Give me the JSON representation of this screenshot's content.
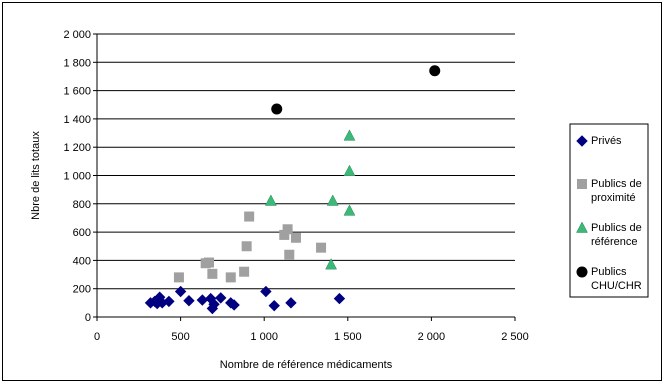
{
  "chart_data": {
    "type": "scatter",
    "title": "",
    "xlabel": "Nombre de référence médicaments",
    "ylabel": "Nbre de lits totaux",
    "xlim": [
      0,
      2500
    ],
    "ylim": [
      0,
      2000
    ],
    "x_ticks": [
      {
        "value": 0,
        "label": "0"
      },
      {
        "value": 500,
        "label": "500"
      },
      {
        "value": 1000,
        "label": "1 000"
      },
      {
        "value": 1500,
        "label": "1 500"
      },
      {
        "value": 2000,
        "label": "2 000"
      },
      {
        "value": 2500,
        "label": "2 500"
      }
    ],
    "y_ticks": [
      {
        "value": 0,
        "label": "0"
      },
      {
        "value": 200,
        "label": "200"
      },
      {
        "value": 400,
        "label": "400"
      },
      {
        "value": 600,
        "label": "600"
      },
      {
        "value": 800,
        "label": "800"
      },
      {
        "value": 1000,
        "label": "1 000"
      },
      {
        "value": 1200,
        "label": "1 200"
      },
      {
        "value": 1400,
        "label": "1 400"
      },
      {
        "value": 1600,
        "label": "1 600"
      },
      {
        "value": 1800,
        "label": "1 800"
      },
      {
        "value": 2000,
        "label": "2 000"
      }
    ],
    "grid": "horizontal",
    "legend_position": "right",
    "series": [
      {
        "name": "Privés",
        "marker": "diamond",
        "color": "#000080",
        "points": [
          {
            "x": 320,
            "y": 100
          },
          {
            "x": 345,
            "y": 110
          },
          {
            "x": 360,
            "y": 95
          },
          {
            "x": 375,
            "y": 140
          },
          {
            "x": 390,
            "y": 100
          },
          {
            "x": 430,
            "y": 110
          },
          {
            "x": 500,
            "y": 180
          },
          {
            "x": 550,
            "y": 115
          },
          {
            "x": 630,
            "y": 120
          },
          {
            "x": 680,
            "y": 130
          },
          {
            "x": 690,
            "y": 60
          },
          {
            "x": 700,
            "y": 90
          },
          {
            "x": 740,
            "y": 135
          },
          {
            "x": 800,
            "y": 100
          },
          {
            "x": 820,
            "y": 85
          },
          {
            "x": 1010,
            "y": 180
          },
          {
            "x": 1060,
            "y": 80
          },
          {
            "x": 1160,
            "y": 100
          },
          {
            "x": 1450,
            "y": 130
          }
        ]
      },
      {
        "name": "Publics de proximité",
        "marker": "square",
        "color": "#a0a0a0",
        "points": [
          {
            "x": 490,
            "y": 280
          },
          {
            "x": 650,
            "y": 380
          },
          {
            "x": 670,
            "y": 385
          },
          {
            "x": 690,
            "y": 305
          },
          {
            "x": 800,
            "y": 280
          },
          {
            "x": 880,
            "y": 320
          },
          {
            "x": 895,
            "y": 500
          },
          {
            "x": 910,
            "y": 710
          },
          {
            "x": 1120,
            "y": 580
          },
          {
            "x": 1140,
            "y": 620
          },
          {
            "x": 1150,
            "y": 440
          },
          {
            "x": 1190,
            "y": 560
          },
          {
            "x": 1340,
            "y": 490
          }
        ]
      },
      {
        "name": "Publics de référence",
        "marker": "triangle",
        "color": "#3cb878",
        "points": [
          {
            "x": 1040,
            "y": 820
          },
          {
            "x": 1400,
            "y": 370
          },
          {
            "x": 1410,
            "y": 820
          },
          {
            "x": 1510,
            "y": 1280
          },
          {
            "x": 1510,
            "y": 1030
          },
          {
            "x": 1510,
            "y": 750
          }
        ]
      },
      {
        "name": "Publics CHU/CHR",
        "marker": "circle",
        "color": "#000000",
        "points": [
          {
            "x": 1075,
            "y": 1470
          },
          {
            "x": 2020,
            "y": 1740
          }
        ]
      }
    ],
    "legend": [
      {
        "series": "Privés",
        "lines": [
          "Privés"
        ]
      },
      {
        "series": "Publics de proximité",
        "lines": [
          "Publics de",
          "proximité"
        ]
      },
      {
        "series": "Publics de référence",
        "lines": [
          "Publics de",
          "référence"
        ]
      },
      {
        "series": "Publics CHU/CHR",
        "lines": [
          "Publics",
          "CHU/CHR"
        ]
      }
    ]
  }
}
